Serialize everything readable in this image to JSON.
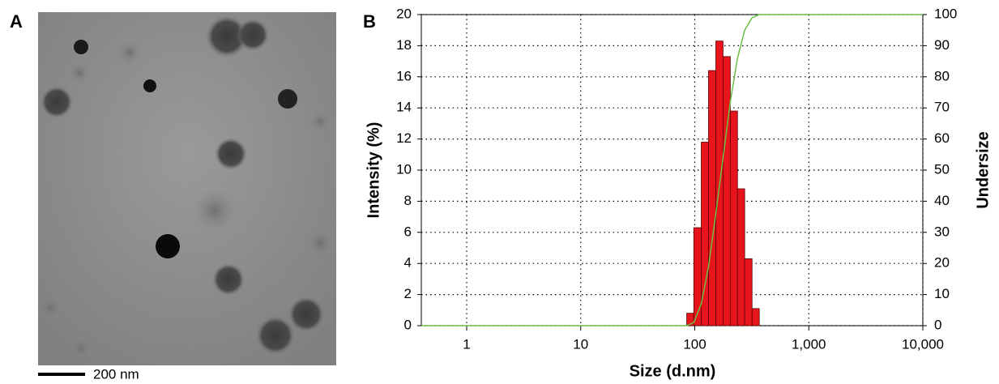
{
  "panel_labels": [
    "A",
    "B"
  ],
  "micrograph": {
    "scale_bar_label": "200 nm"
  },
  "chart_data": {
    "type": "histogram",
    "x_label": "Size (d.nm)",
    "y_label": "Intensity (%)",
    "y2_label": "Undersize",
    "xscale": "log",
    "bins": [
      85,
      98,
      114,
      132,
      153,
      177,
      205,
      237,
      274,
      318,
      368
    ],
    "values": [
      0.8,
      6.3,
      11.8,
      16.4,
      18.3,
      17.3,
      13.8,
      8.8,
      4.3,
      1.1
    ],
    "color": "#e8141c",
    "series": [
      {
        "type": "line",
        "color": "#6cbf45",
        "axis": "y2",
        "x": [
          0.4,
          85,
          98,
          114,
          132,
          153,
          177,
          205,
          237,
          274,
          318,
          368,
          10000
        ],
        "values": [
          0,
          0,
          1,
          7,
          19,
          36,
          54,
          72,
          86,
          95,
          99,
          100,
          100
        ]
      }
    ],
    "xlim": [
      0.4,
      10000
    ],
    "xticks": [
      1,
      10,
      100,
      {
        "value": 1000,
        "label": "1,000"
      },
      {
        "value": 10000,
        "label": "10,000"
      }
    ],
    "ylim": [
      0,
      20
    ],
    "yticks": [
      0,
      2,
      4,
      6,
      8,
      10,
      12,
      14,
      16,
      18,
      20
    ],
    "y2lim": [
      0,
      100
    ],
    "y2ticks": [
      0,
      10,
      20,
      30,
      40,
      50,
      60,
      70,
      80,
      90,
      100
    ],
    "grid": true
  }
}
